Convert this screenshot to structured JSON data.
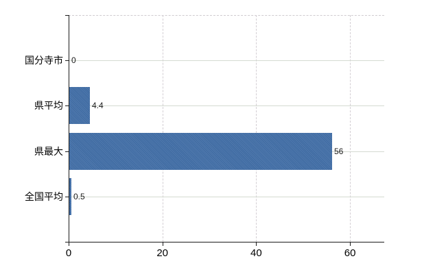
{
  "chart_data": {
    "type": "bar",
    "orientation": "horizontal",
    "categories": [
      "国分寺市",
      "県平均",
      "県最大",
      "全国平均"
    ],
    "values": [
      0,
      4.4,
      56,
      0.5
    ],
    "value_labels": [
      "0",
      "4.4",
      "56",
      "0.5"
    ],
    "x_ticks": [
      0,
      20,
      40,
      60
    ],
    "x_tick_labels": [
      "0",
      "20",
      "40",
      "60"
    ],
    "xlim": [
      0,
      67.3
    ],
    "xlabel": "",
    "ylabel": "",
    "title": "",
    "legend": null,
    "grid": true,
    "colors": {
      "bar": "#3e6ca6",
      "axis": "#1a1a1a",
      "horizontal_gridline": "#d4dad1",
      "vertical_gridline": "#d3ced3",
      "label_text": "#000000",
      "background": "#ffffff"
    }
  }
}
